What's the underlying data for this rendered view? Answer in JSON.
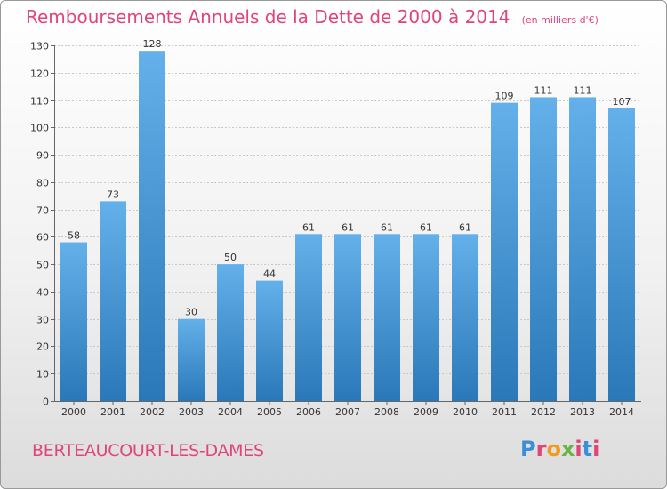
{
  "header": {
    "title": "Remboursements Annuels de la Dette de 2000 à 2014",
    "unit": "(en milliers d'€)"
  },
  "footer": {
    "place": "BERTEAUCOURT-LES-DAMES",
    "logo": "Proxiti",
    "logo_colors": [
      "#3a8fd6",
      "#e0457a",
      "#f29a1e",
      "#6ab344",
      "#e0457a",
      "#3a8fd6",
      "#e0457a"
    ]
  },
  "colors": {
    "bar_light": "#64b0ea",
    "bar_dark": "#2a78b8",
    "title": "#e0457a"
  },
  "chart_data": {
    "type": "bar",
    "title": "Remboursements Annuels de la Dette de 2000 à 2014",
    "categories": [
      "2000",
      "2001",
      "2002",
      "2003",
      "2004",
      "2005",
      "2006",
      "2007",
      "2008",
      "2009",
      "2010",
      "2011",
      "2012",
      "2013",
      "2014"
    ],
    "values": [
      58,
      73,
      128,
      30,
      50,
      44,
      61,
      61,
      61,
      61,
      61,
      109,
      111,
      111,
      107
    ],
    "ylim": [
      0,
      130
    ],
    "yticks": [
      0,
      10,
      20,
      30,
      40,
      50,
      60,
      70,
      80,
      90,
      100,
      110,
      120,
      130
    ],
    "grid": true,
    "xlabel": "",
    "ylabel": ""
  }
}
